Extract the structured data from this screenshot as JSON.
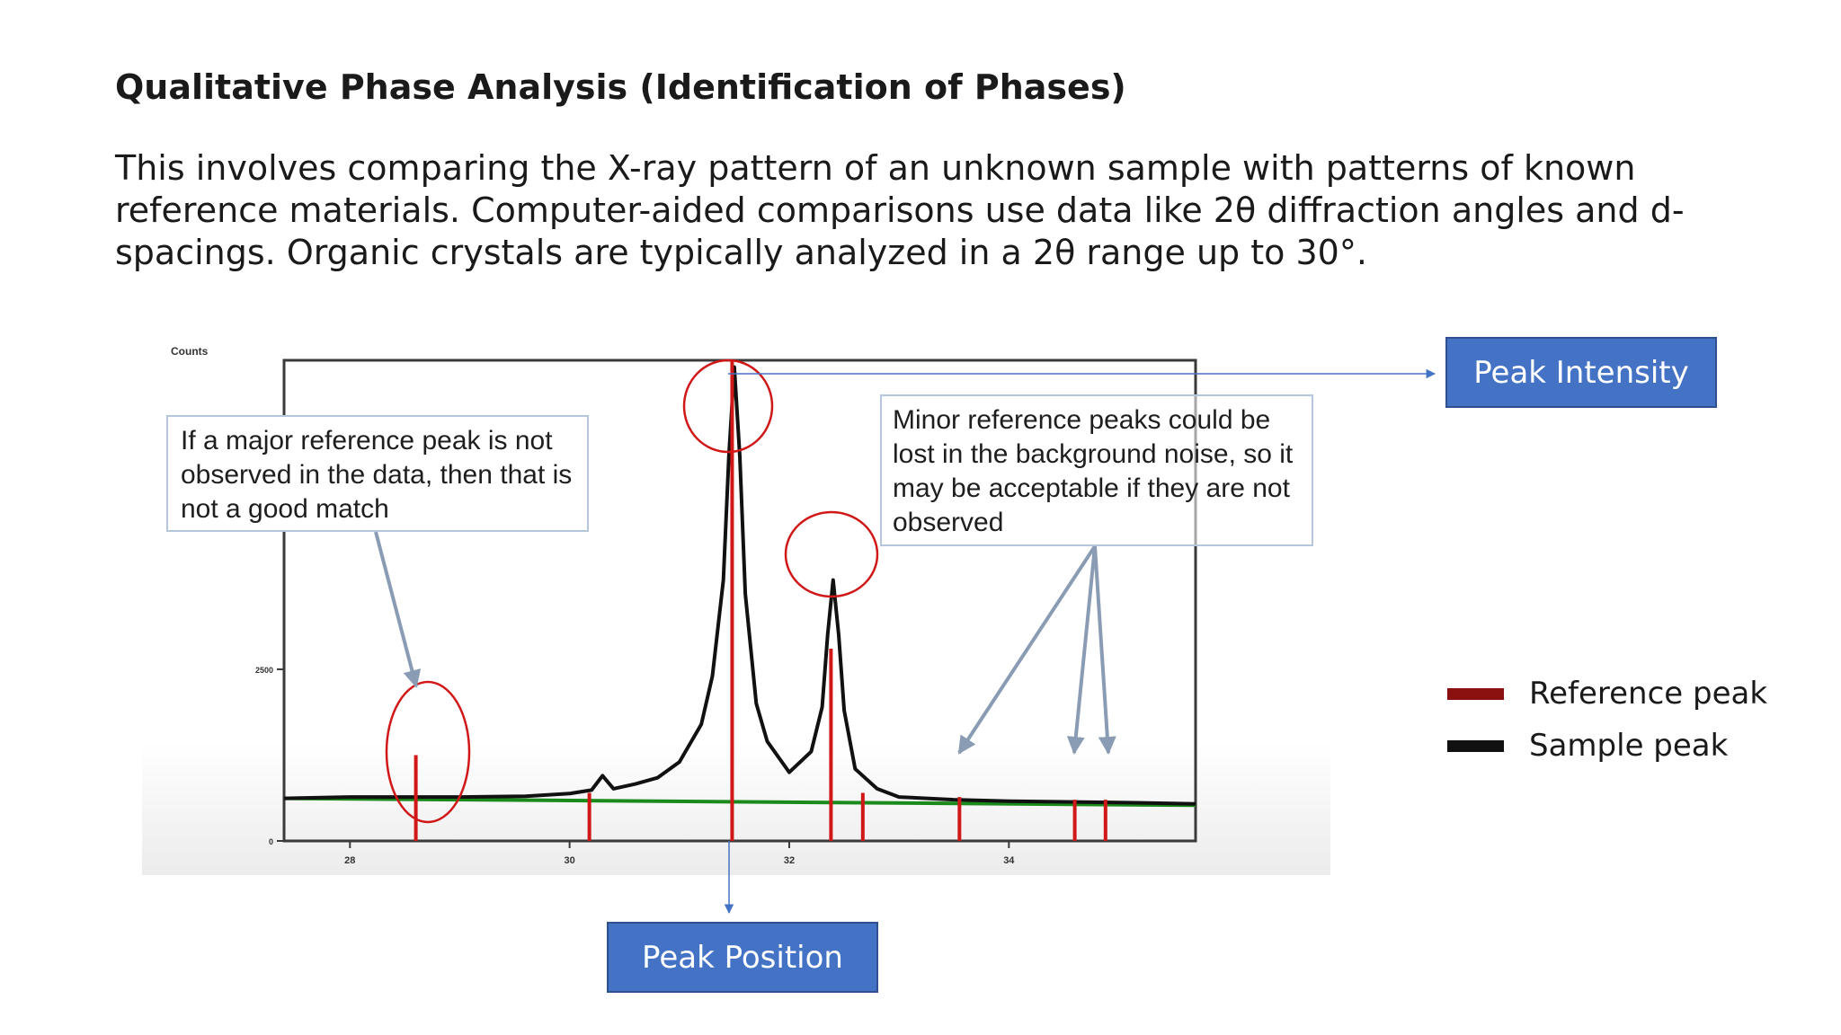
{
  "slide": {
    "title": "Qualitative Phase Analysis (Identification of Phases)",
    "body": "This involves comparing the X-ray pattern of an unknown sample with patterns of known reference materials. Computer-aided comparisons use data like 2θ diffraction angles and d-spacings. Organic crystals are typically analyzed in a 2θ range up to 30°."
  },
  "annotations": {
    "callout_left": "If a major reference peak is not observed in the data, then that is not a good match",
    "callout_right": "Minor reference peaks could be lost in the background noise, so it may be acceptable if they are not observed",
    "peak_intensity": "Peak Intensity",
    "peak_position": "Peak Position"
  },
  "legend": [
    {
      "label": "Reference peak",
      "color": "#8b1010"
    },
    {
      "label": "Sample peak",
      "color": "#111111"
    }
  ],
  "colors": {
    "sample_line": "#111111",
    "reference_line": "#d01818",
    "background_fit": "#1a8a1a",
    "circle": "#d01818",
    "arrow_gray": "#8a9cb4",
    "arrow_blue": "#4472c4"
  },
  "chart_data": {
    "type": "line",
    "ylabel": "Counts",
    "xlim": [
      27.4,
      35.7
    ],
    "ylim": [
      0,
      7000
    ],
    "x_ticks": [
      28,
      30,
      32,
      34
    ],
    "y_ticks": [
      0,
      2500
    ],
    "series": [
      {
        "style": "sample",
        "x": [
          27.4,
          28.0,
          28.6,
          29.0,
          29.6,
          30.0,
          30.2,
          30.3,
          30.4,
          30.6,
          30.8,
          31.0,
          31.2,
          31.3,
          31.4,
          31.45,
          31.5,
          31.55,
          31.6,
          31.7,
          31.8,
          32.0,
          32.2,
          32.3,
          32.35,
          32.4,
          32.45,
          32.5,
          32.6,
          32.8,
          33.0,
          33.5,
          34.0,
          35.0,
          35.7
        ],
        "y": [
          620,
          640,
          640,
          640,
          650,
          690,
          740,
          950,
          760,
          830,
          920,
          1150,
          1700,
          2400,
          3800,
          5600,
          6900,
          5600,
          3600,
          2000,
          1450,
          1000,
          1300,
          1950,
          3000,
          3800,
          3000,
          1900,
          1050,
          760,
          640,
          600,
          580,
          560,
          540
        ]
      },
      {
        "style": "background",
        "x": [
          27.4,
          35.7
        ],
        "y": [
          620,
          520
        ]
      }
    ],
    "reference_peaks": [
      {
        "x": 28.6,
        "y": 1250
      },
      {
        "x": 30.18,
        "y": 700
      },
      {
        "x": 31.48,
        "y": 7000
      },
      {
        "x": 32.38,
        "y": 2800
      },
      {
        "x": 32.67,
        "y": 700
      },
      {
        "x": 33.55,
        "y": 640
      },
      {
        "x": 34.6,
        "y": 600
      },
      {
        "x": 34.88,
        "y": 600
      }
    ]
  }
}
